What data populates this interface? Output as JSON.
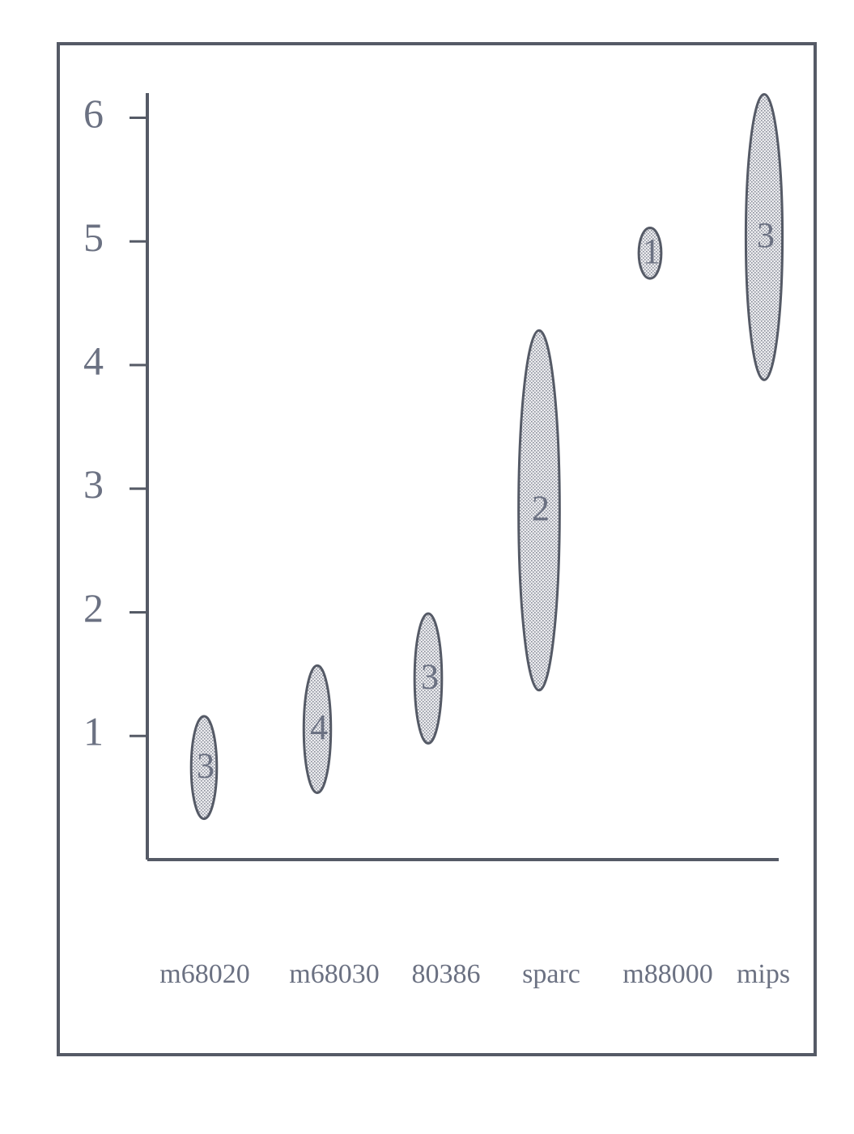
{
  "chart_data": {
    "type": "range-ellipse",
    "categories": [
      "m68020",
      "m68030",
      "80386",
      "sparc",
      "m88000",
      "mips"
    ],
    "low": [
      0.33,
      0.54,
      0.94,
      1.37,
      4.7,
      3.88
    ],
    "high": [
      1.16,
      1.57,
      1.99,
      4.28,
      5.11,
      6.19
    ],
    "counts": [
      3,
      4,
      3,
      2,
      1,
      3
    ],
    "color": "#d4d5da",
    "ylim": [
      0,
      6.2
    ],
    "yticks": [
      1,
      2,
      3,
      4,
      5,
      6
    ]
  }
}
